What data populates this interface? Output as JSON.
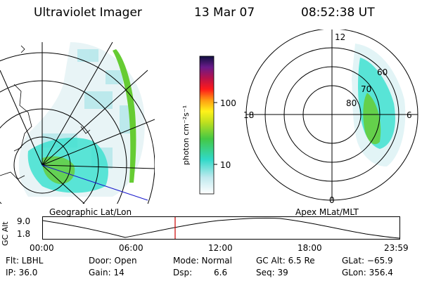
{
  "header": {
    "title": "Ultraviolet Imager",
    "date": "13 Mar 07",
    "time": "08:52:38 UT"
  },
  "colorbar": {
    "unit_label": "photon cm⁻²s⁻¹",
    "tick_100": "100",
    "tick_10": "10",
    "scale": "log"
  },
  "polar_plot": {
    "mlt_labels": {
      "top": "12",
      "left": "18",
      "right": "6",
      "bottom": "0"
    },
    "lat_labels": [
      "60",
      "70",
      "80"
    ]
  },
  "map_captions": {
    "geographic": "Geographic Lat/Lon",
    "apex": "Apex MLat/MLT"
  },
  "altitude_plot": {
    "ylabel": "GC Alt",
    "ytick_high": "9.0",
    "ytick_low": "1.8",
    "xticks": [
      "00:00",
      "06:00",
      "12:00",
      "18:00",
      "23:59"
    ],
    "current_time_marker": "08:52:38"
  },
  "status": {
    "row1": [
      {
        "key": "flt",
        "text": "Flt: LBHL"
      },
      {
        "key": "door",
        "text": "Door: Open"
      },
      {
        "key": "mode",
        "text": "Mode: Normal"
      },
      {
        "key": "gcalt",
        "text": "GC Alt: 6.5 Re"
      },
      {
        "key": "glat",
        "text": "GLat: −65.9"
      }
    ],
    "row2": [
      {
        "key": "ip",
        "text": "IP: 36.0"
      },
      {
        "key": "gain",
        "text": "Gain: 14"
      },
      {
        "key": "dsp_label",
        "text": "Dsp:"
      },
      {
        "key": "dsp_value",
        "text": "6.6"
      },
      {
        "key": "seq",
        "text": "Seq: 39"
      },
      {
        "key": "glon",
        "text": "GLon: 356.4"
      }
    ]
  },
  "colors": {
    "aurora_cyan": "#40e0d0",
    "aurora_green": "#66cc33",
    "time_marker": "#cc0000"
  }
}
